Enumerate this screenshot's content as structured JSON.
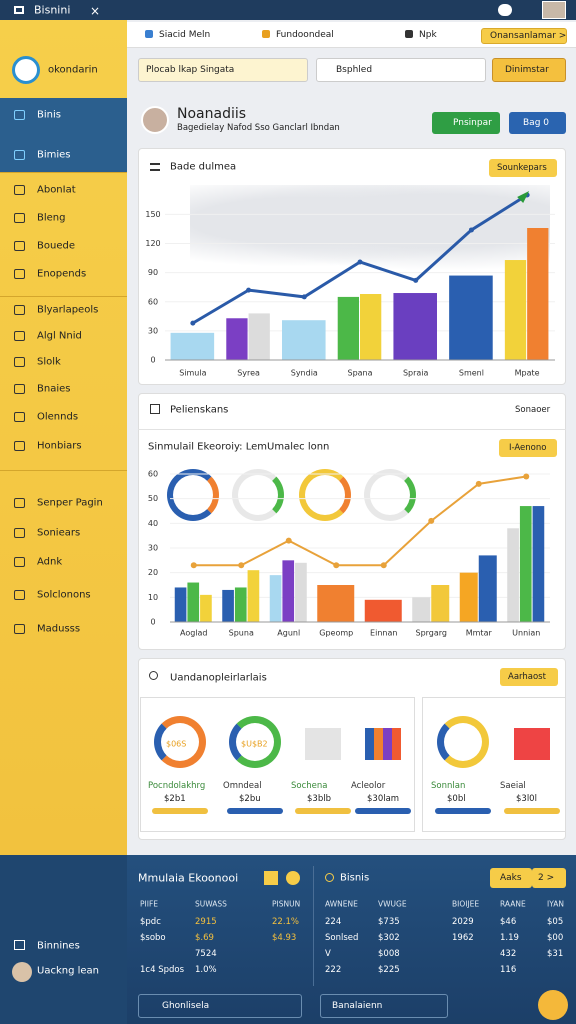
{
  "topbar": {
    "title": "Bisnini"
  },
  "sidebar": {
    "brand": "okondarin",
    "items": [
      "Binis",
      "Bimies",
      "AbonIat",
      "Bleng",
      "Bouede",
      "Enopends",
      "Blyarlapeols",
      "Algl Nnid",
      "Slolk",
      "Bnaies",
      "Olennds",
      "Honbiars",
      "Senper Pagin",
      "Soniears",
      "Adnk",
      "Solclonons",
      "Madusss"
    ],
    "bottom": [
      "Binnines",
      "Uackng lean"
    ]
  },
  "tabs": [
    "Siacid Meln",
    "Fundoondeal",
    "Npk"
  ],
  "tab_button": "Onansanlamar >",
  "search": {
    "left": "Plocab lkap Singata",
    "right": "Bsphled",
    "button": "Dinimstar"
  },
  "profile": {
    "name": "Noanadiis",
    "subtitle": "Bagedielay Nafod Sso Ganclarl Ibndan",
    "buttons": [
      "Pnsinpar",
      "Bag 0"
    ]
  },
  "cards": [
    {
      "title": "Bade dulmea",
      "button": "Sounkepars"
    },
    {
      "title": "Pelienskans",
      "action": "Sonaoer",
      "subtitle": "Sinmulail Ekeoroiy: LemUmalec lonn",
      "button": "I-Aenono"
    },
    {
      "title": "Uandanopleirlarlais",
      "button": "Aarhaost",
      "items": [
        {
          "label": "Pocndolakhrg",
          "value": "$2b1",
          "center": "$06S"
        },
        {
          "label": "Omndeal",
          "value": "$2bu",
          "center": "$U$B2"
        },
        {
          "label": "Sochena",
          "value": "$3blb"
        },
        {
          "label": "Acleolor",
          "value": "$30lam"
        },
        {
          "label": "Sonnlan",
          "value": "$0bl"
        },
        {
          "label": "Saeial",
          "value": "$3l0l"
        }
      ]
    }
  ],
  "footer": {
    "title": "Mmulaia Ekoonooi",
    "right_title": "Bisnis",
    "buttons": [
      "Aaks",
      "2 >"
    ],
    "table_left": {
      "headers": [
        "PIIFE",
        "SUWASS",
        "PISNUN"
      ],
      "rows": [
        [
          "$pdc",
          "2915",
          "22.1%"
        ],
        [
          "$sobo",
          "$.69",
          "$4.93"
        ],
        [
          null,
          "7524",
          null
        ],
        [
          "1c4 Spdos",
          "1.0%",
          null
        ]
      ]
    },
    "table_right": {
      "headers": [
        "AWNENE",
        "VWUGE",
        "BIOIJEE",
        "RAANE",
        "IYAN"
      ],
      "rows": [
        [
          "224",
          "$735",
          "2029",
          "$46",
          "$05"
        ],
        [
          "Sonlsed",
          "$302",
          "1962",
          "1.19",
          "$00"
        ],
        [
          "V",
          "$008",
          null,
          "432",
          "$31"
        ],
        [
          "222",
          "$225",
          null,
          "116",
          null
        ]
      ]
    },
    "search": "Ghonlisela",
    "bar": "Banalaienn"
  },
  "chart_data": [
    {
      "type": "bar",
      "categories": [
        "Simula",
        "Syrea",
        "Syndia",
        "Spana",
        "Spraia",
        "Smenl",
        "Mpate"
      ],
      "series": [
        {
          "colors": [
            "#a8d8f0",
            "#7b3fc4",
            "#a8d8f0",
            "#4cb848",
            "#6a3fc0",
            "#2a5fb0",
            "#f2d23a"
          ],
          "values": [
            28,
            43,
            41,
            65,
            69,
            87,
            103
          ]
        },
        {
          "colors": [
            null,
            "#dcdcdc",
            null,
            "#f2d23a",
            null,
            null,
            "#f08030"
          ],
          "values": [
            null,
            48,
            null,
            68,
            null,
            null,
            136
          ]
        },
        {
          "type": "line",
          "color": "#2a5aa8",
          "values": [
            38,
            72,
            65,
            101,
            82,
            134,
            170
          ]
        }
      ],
      "ylim": [
        0,
        170
      ],
      "yticks": [
        0,
        30,
        60,
        90,
        120,
        150
      ]
    },
    {
      "type": "bar",
      "categories": [
        "Aoglad",
        "Spuna",
        "Agunl",
        "Gpeomp",
        "Einnan",
        "Sprgarg",
        "Mmtar",
        "Unnian"
      ],
      "series": [
        {
          "colors": [
            "#2a5fb0",
            "#2a5fb0",
            "#a8d8f0",
            null,
            null,
            "#dcdcdc",
            "#f5a623",
            "#dcdcdc"
          ],
          "values": [
            14,
            13,
            19,
            null,
            null,
            10,
            20,
            38
          ]
        },
        {
          "colors": [
            "#4cb848",
            "#4cb848",
            "#7b3fc4",
            "#f08030",
            "#f05a30",
            "#f2c83a",
            "#2a5fb0",
            "#4cb848"
          ],
          "values": [
            16,
            14,
            25,
            15,
            9,
            15,
            27,
            47
          ]
        },
        {
          "colors": [
            "#f2d23a",
            "#f2d23a",
            "#dcdcdc",
            null,
            null,
            null,
            null,
            "#2a5fb0"
          ],
          "values": [
            11,
            21,
            24,
            null,
            null,
            null,
            null,
            47
          ]
        },
        {
          "type": "line",
          "color": "#e8a23a",
          "values": [
            23,
            23,
            33,
            23,
            23,
            41,
            56,
            59
          ]
        }
      ],
      "ylim": [
        0,
        60
      ],
      "yticks": [
        0,
        10,
        20,
        30,
        40,
        50,
        60
      ]
    }
  ]
}
